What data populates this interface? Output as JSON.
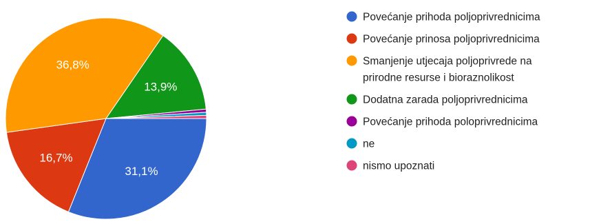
{
  "chart_data": {
    "type": "pie",
    "title": "",
    "legend_position": "right",
    "slices": [
      {
        "label": "Povećanje prihoda poljoprivrednicima",
        "value": 31.1,
        "value_label": "31,1%",
        "color": "#3366cc"
      },
      {
        "label": "Povećanje prinosa poljoprivrednicima",
        "value": 16.7,
        "value_label": "16,7%",
        "color": "#dc3912"
      },
      {
        "label": "Smanjenje utjecaja poljoprivrede na prirodne resurse i bioraznolikost",
        "value": 36.8,
        "value_label": "36,8%",
        "color": "#ff9900"
      },
      {
        "label": "Dodatna zarada poljoprivrednicima",
        "value": 13.9,
        "value_label": "13,9%",
        "color": "#109618"
      },
      {
        "label": "Povećanje prihoda poloprivrednicima",
        "value": 0.5,
        "value_label": "",
        "color": "#990099"
      },
      {
        "label": "ne",
        "value": 0.5,
        "value_label": "",
        "color": "#0099c6"
      },
      {
        "label": "nismo upoznati",
        "value": 0.5,
        "value_label": "",
        "color": "#dd4477"
      }
    ]
  }
}
